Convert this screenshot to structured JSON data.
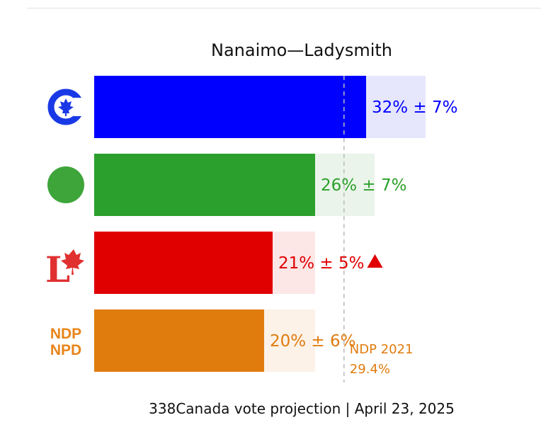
{
  "chart_data": {
    "type": "bar",
    "orientation": "horizontal",
    "title": "Nanaimo—Ladysmith",
    "xlim": [
      0,
      50
    ],
    "categories": [
      "CPC",
      "GPC",
      "LPC",
      "NDP"
    ],
    "series": [
      {
        "name": "338Canada vote projection",
        "values": [
          32,
          26,
          21,
          20
        ],
        "errors": [
          7,
          7,
          5,
          6
        ]
      }
    ],
    "labels": [
      "32% ± 7%",
      "26% ± 7%",
      "21% ± 5%",
      "20% ± 6%"
    ],
    "colors": [
      "#0000ff",
      "#2ca02c",
      "#e00000",
      "#e07c0e"
    ],
    "light_colors": [
      "#e6e6fc",
      "#eaf4ea",
      "#fce6e6",
      "#fcf2e8"
    ],
    "trend": [
      null,
      null,
      "up",
      null
    ],
    "reference": {
      "party": "NDP",
      "value": 29.4,
      "label_line1": "NDP 2021",
      "label_line2": "29.4%",
      "color": "#e07c0e"
    },
    "footer": "338Canada vote projection | April 23, 2025"
  },
  "logos": {
    "ndp_line1": "NDP",
    "ndp_line2": "NPD"
  }
}
